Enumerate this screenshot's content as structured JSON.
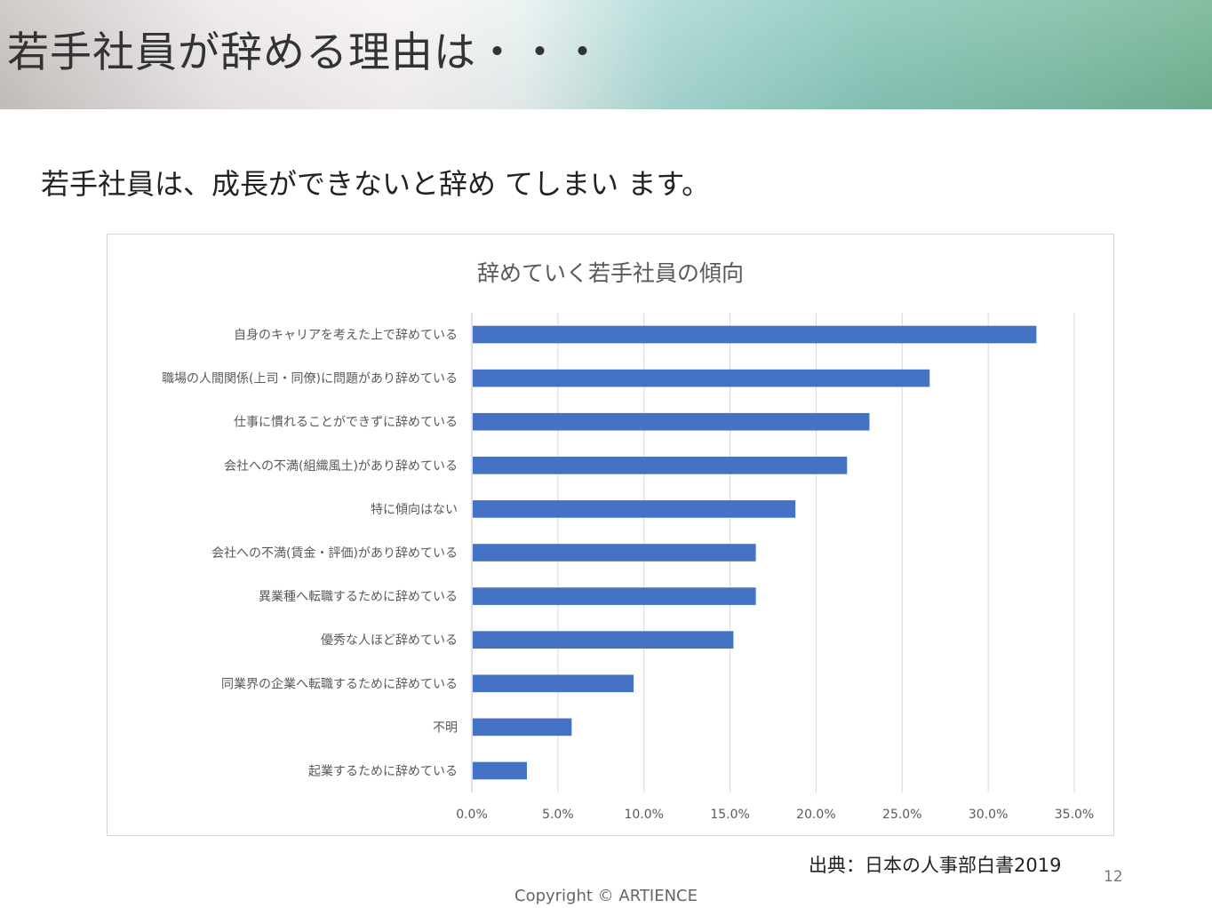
{
  "slide": {
    "title": "若手社員が辞める理由は・・・",
    "subtitle": "若手社員は、成長ができないと辞め てしまい ます。",
    "source": "出典：日本の人事部白書2019",
    "page_number": "12",
    "copyright": "Copyright © ARTIENCE"
  },
  "colors": {
    "bar": "#4472c4",
    "gridline": "#d9d9d9",
    "axis_text": "#595959"
  },
  "chart_data": {
    "type": "bar",
    "orientation": "horizontal",
    "title": "辞めていく若手社員の傾向",
    "categories": [
      "自身のキャリアを考えた上で辞めている",
      "職場の人間関係(上司・同僚)に問題があり辞めている",
      "仕事に慣れることができずに辞めている",
      "会社への不満(組織風土)があり辞めている",
      "特に傾向はない",
      "会社への不満(賃金・評価)があり辞めている",
      "異業種へ転職するために辞めている",
      "優秀な人ほど辞めている",
      "同業界の企業へ転職するために辞めている",
      "不明",
      "起業するために辞めている"
    ],
    "values": [
      32.8,
      26.6,
      23.1,
      21.8,
      18.8,
      16.5,
      16.5,
      15.2,
      9.4,
      5.8,
      3.2
    ],
    "xlim": [
      0,
      35
    ],
    "x_ticks": [
      "0.0%",
      "5.0%",
      "10.0%",
      "15.0%",
      "20.0%",
      "25.0%",
      "30.0%",
      "35.0%"
    ],
    "grid": true,
    "legend": "none"
  }
}
